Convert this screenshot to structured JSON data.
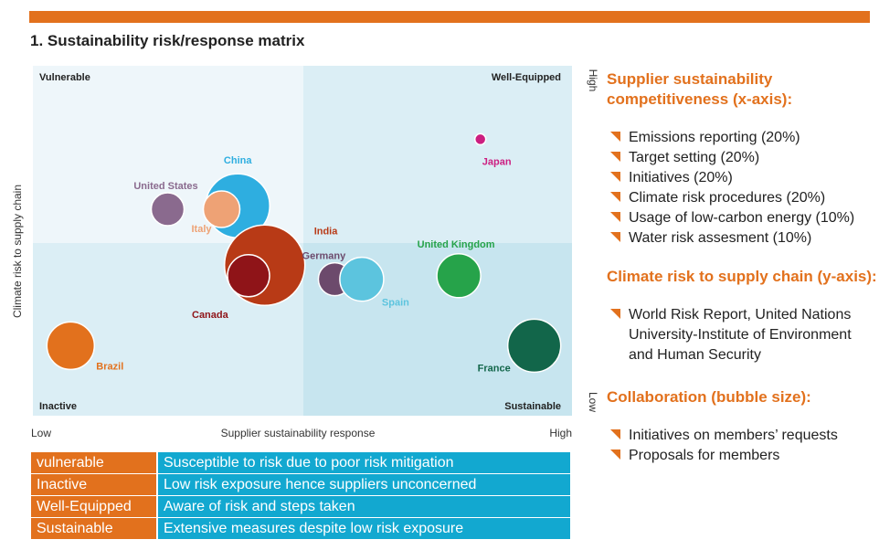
{
  "title": "1. Sustainability risk/response matrix",
  "chart_data": {
    "type": "scatter",
    "subtype": "bubble",
    "xlabel": "Supplier sustainability response",
    "ylabel": "Climate risk to supply chain",
    "x_low_label": "Low",
    "x_high_label": "High",
    "y_low_label": "Low",
    "y_high_label": "High",
    "xlim": [
      0,
      100
    ],
    "ylim": [
      0,
      100
    ],
    "quadrants": {
      "top_left": "Vulnerable",
      "top_right": "Well-Equipped",
      "bottom_left": "Inactive",
      "bottom_right": "Sustainable"
    },
    "points": [
      {
        "name": "China",
        "x": 38,
        "y": 60,
        "size": 35,
        "color": "#2eaee0"
      },
      {
        "name": "United States",
        "x": 25,
        "y": 59,
        "size": 18,
        "color": "#8a6a8e"
      },
      {
        "name": "Italy",
        "x": 35,
        "y": 59,
        "size": 20,
        "color": "#eea275"
      },
      {
        "name": "India",
        "x": 43,
        "y": 43,
        "size": 44,
        "color": "#b83a16"
      },
      {
        "name": "Canada",
        "x": 40,
        "y": 40,
        "size": 23,
        "color": "#8f1418"
      },
      {
        "name": "Germany",
        "x": 56,
        "y": 39,
        "size": 18,
        "color": "#6c4a6c"
      },
      {
        "name": "Spain",
        "x": 61,
        "y": 39,
        "size": 24,
        "color": "#5cc4de"
      },
      {
        "name": "Japan",
        "x": 83,
        "y": 79,
        "size": 6,
        "color": "#cc1e80"
      },
      {
        "name": "United Kingdom",
        "x": 79,
        "y": 40,
        "size": 24,
        "color": "#26a34a"
      },
      {
        "name": "Brazil",
        "x": 7,
        "y": 20,
        "size": 26,
        "color": "#e2711d"
      },
      {
        "name": "France",
        "x": 93,
        "y": 20,
        "size": 29,
        "color": "#12664a"
      }
    ]
  },
  "legend_table": [
    {
      "term": "vulnerable",
      "description": "Susceptible to risk due to poor risk mitigation"
    },
    {
      "term": "Inactive",
      "description": "Low risk exposure hence suppliers unconcerned"
    },
    {
      "term": "Well-Equipped",
      "description": "Aware of risk and steps taken"
    },
    {
      "term": "Sustainable",
      "description": "Extensive measures despite low risk exposure"
    }
  ],
  "side": {
    "x_heading": "Supplier sustainability competitiveness (x-axis):",
    "x_items": [
      "Emissions reporting (20%)",
      "Target setting (20%)",
      "Initiatives (20%)",
      "Climate risk procedures (20%)",
      "Usage of low-carbon energy (10%)",
      "Water risk assesment (10%)"
    ],
    "y_heading": "Climate risk to supply chain (y-axis):",
    "y_items": [
      "World Risk Report, United Nations University-Institute of Environment and Human Security"
    ],
    "bubble_heading": "Collaboration (bubble size):",
    "bubble_items": [
      "Initiatives on members’ requests",
      "Proposals for members"
    ]
  },
  "colors": {
    "accent": "#e2711d",
    "table_blue": "#12a8d0",
    "quad_left_top": "#eef6fa",
    "quad_right_top": "#dbeef5",
    "quad_left_bottom": "#dbeef5",
    "quad_right_bottom": "#c7e5ef"
  }
}
